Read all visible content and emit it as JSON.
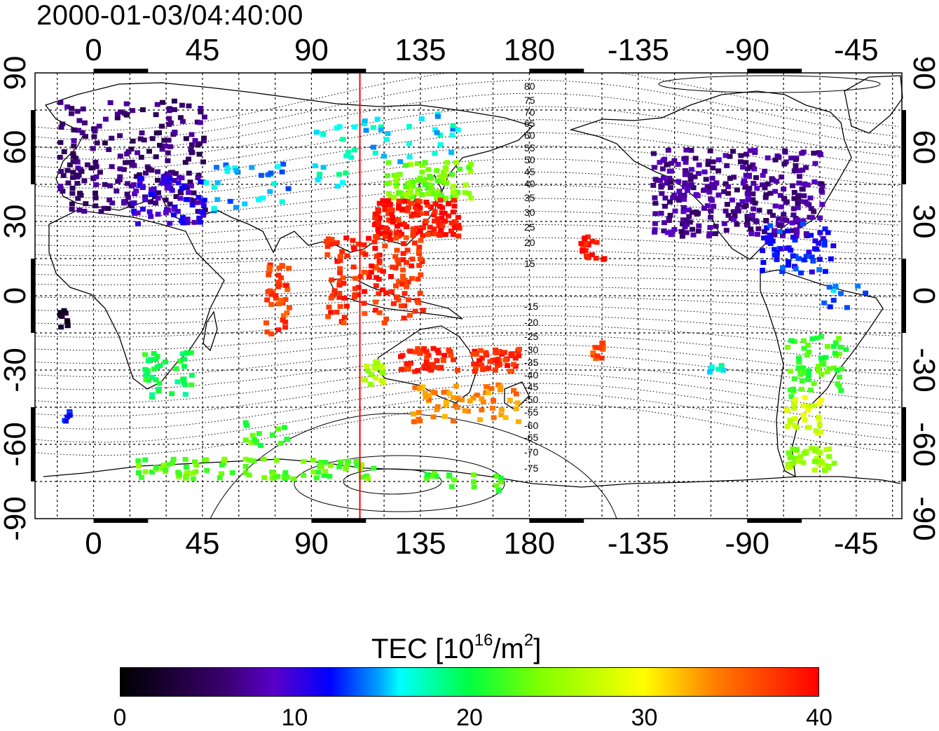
{
  "title": "2000-01-03/04:40:00",
  "x_axis": {
    "ticks": [
      "0",
      "45",
      "90",
      "135",
      "180",
      "-135",
      "-90",
      "-45"
    ]
  },
  "y_axis": {
    "ticks": [
      "90",
      "60",
      "30",
      "0",
      "-30",
      "-60",
      "-90"
    ]
  },
  "terminator_longitude": 110,
  "contour_labels": [
    "80",
    "75",
    "70",
    "65",
    "60",
    "55",
    "50",
    "45",
    "40",
    "35",
    "30",
    "25",
    "20",
    "15",
    "-15",
    "-20",
    "-25",
    "-30",
    "-35",
    "-40",
    "-45",
    "-50",
    "-55",
    "-60",
    "-65",
    "-70",
    "-75"
  ],
  "colorbar": {
    "title_prefix": "TEC  [10",
    "title_exp": "16",
    "title_mid": "/m",
    "title_exp2": "2",
    "title_suffix": "]",
    "ticks": [
      "0",
      "10",
      "20",
      "30",
      "40"
    ],
    "range": [
      0,
      40
    ]
  },
  "colors": {
    "terminator": "#ff0000",
    "frame": "#000000"
  }
}
